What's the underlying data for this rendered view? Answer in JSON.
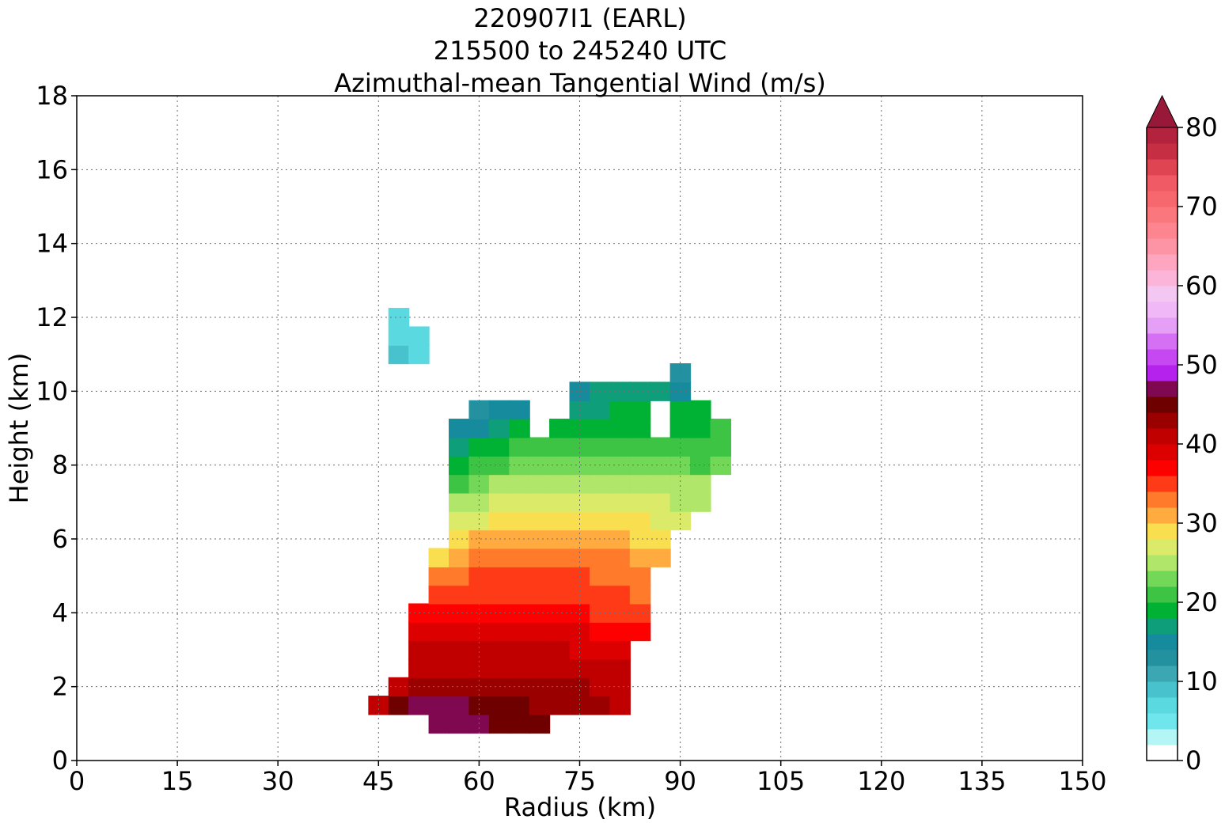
{
  "chart_data": {
    "type": "heatmap",
    "title_lines": [
      "220907I1 (EARL)",
      "215500 to 245240 UTC",
      "Azimuthal-mean Tangential Wind (m/s)"
    ],
    "xlabel": "Radius (km)",
    "ylabel": "Height (km)",
    "xlim": [
      0,
      150
    ],
    "ylim": [
      0,
      18
    ],
    "xticks": [
      "0",
      "15",
      "30",
      "45",
      "60",
      "75",
      "90",
      "105",
      "120",
      "135",
      "150"
    ],
    "yticks": [
      "0",
      "2",
      "4",
      "6",
      "8",
      "10",
      "12",
      "14",
      "16",
      "18"
    ],
    "grid": true,
    "colorbar": {
      "ticks": [
        "0",
        "10",
        "20",
        "30",
        "40",
        "50",
        "60",
        "70",
        "80"
      ],
      "range": [
        0,
        80
      ],
      "extend": "max",
      "levels": [
        0,
        2,
        4,
        6,
        8,
        10,
        12,
        14,
        16,
        18,
        20,
        22,
        24,
        26,
        28,
        30,
        32,
        34,
        36,
        38,
        40,
        42,
        44,
        46,
        48,
        50,
        52,
        54,
        56,
        58,
        60,
        62,
        64,
        66,
        68,
        70,
        72,
        74,
        76,
        78,
        80
      ],
      "colors": [
        "#ffffff",
        "#b4f5f5",
        "#6ee6ec",
        "#5ad9e1",
        "#48c2cc",
        "#3aa7b3",
        "#2391a0",
        "#158b9d",
        "#0f9e7a",
        "#00b233",
        "#3dc444",
        "#73d757",
        "#b0e669",
        "#dcea6a",
        "#f9df50",
        "#ffab40",
        "#ff7a2a",
        "#ff3a16",
        "#ff0000",
        "#dd0000",
        "#c00000",
        "#9b0000",
        "#6e0000",
        "#800850",
        "#b522ee",
        "#c648f1",
        "#d56ff4",
        "#e59ff6",
        "#f0b8f6",
        "#f4c6f2",
        "#fcb4d8",
        "#fea6c0",
        "#fd94a6",
        "#fc8590",
        "#fa787d",
        "#f7686e",
        "#ef5a64",
        "#de4452",
        "#c52e43",
        "#b3233d",
        "#98183a"
      ],
      "over_color": "#98183a"
    },
    "wind_field": {
      "units": "m/s",
      "radius_km": [
        45,
        48,
        51,
        54,
        57,
        60,
        63,
        66,
        69,
        72,
        75,
        78,
        81,
        84,
        87,
        90,
        93,
        96
      ],
      "height_km": [
        1.0,
        1.5,
        2.0,
        2.5,
        3.0,
        3.5,
        4.0,
        4.5,
        5.0,
        5.5,
        6.0,
        6.5,
        7.0,
        7.5,
        8.0,
        8.5,
        9.0,
        9.5,
        10.0,
        10.5,
        11.0,
        11.5,
        12.0
      ],
      "rows": [
        [
          null,
          null,
          null,
          47,
          47,
          47,
          45,
          45,
          45,
          null,
          null,
          null,
          null,
          null,
          null,
          null,
          null,
          null
        ],
        [
          41,
          44,
          46,
          46,
          46,
          44,
          44,
          44,
          43,
          43,
          42,
          42,
          41,
          null,
          null,
          null,
          null,
          null
        ],
        [
          null,
          40,
          42,
          43,
          43,
          43,
          43,
          43,
          42,
          42,
          42,
          41,
          40,
          null,
          null,
          null,
          null,
          null
        ],
        [
          null,
          null,
          40,
          40,
          41,
          41,
          41,
          41,
          41,
          41,
          40,
          40,
          40,
          null,
          null,
          null,
          null,
          null
        ],
        [
          null,
          null,
          40,
          40,
          40,
          40,
          40,
          40,
          40,
          40,
          39,
          39,
          39,
          null,
          null,
          null,
          null,
          null
        ],
        [
          null,
          null,
          39,
          39,
          39,
          39,
          39,
          39,
          39,
          38,
          38,
          37,
          37,
          36,
          null,
          null,
          null,
          null
        ],
        [
          null,
          null,
          36,
          36,
          37,
          37,
          37,
          37,
          37,
          37,
          36,
          35,
          35,
          34,
          null,
          null,
          null,
          null
        ],
        [
          null,
          null,
          null,
          35,
          35,
          35,
          35,
          35,
          35,
          35,
          35,
          34,
          34,
          33,
          null,
          null,
          null,
          null
        ],
        [
          null,
          null,
          null,
          33,
          33,
          34,
          34,
          34,
          34,
          34,
          34,
          33,
          33,
          32,
          null,
          null,
          null,
          null
        ],
        [
          null,
          null,
          null,
          29,
          31,
          32,
          32,
          33,
          33,
          33,
          33,
          32,
          32,
          31,
          30,
          null,
          null,
          null
        ],
        [
          null,
          null,
          null,
          null,
          29,
          30,
          31,
          31,
          31,
          31,
          31,
          31,
          30,
          29,
          28,
          null,
          null,
          null
        ],
        [
          null,
          null,
          null,
          null,
          26,
          27,
          28,
          29,
          29,
          29,
          29,
          29,
          28,
          28,
          27,
          26,
          null,
          null
        ],
        [
          null,
          null,
          null,
          null,
          24,
          25,
          26,
          26,
          27,
          27,
          27,
          27,
          27,
          26,
          26,
          25,
          25,
          null
        ],
        [
          null,
          null,
          null,
          null,
          21,
          23,
          24,
          24,
          25,
          25,
          25,
          25,
          25,
          25,
          24,
          24,
          24,
          null
        ],
        [
          null,
          null,
          null,
          null,
          18,
          20,
          21,
          22,
          23,
          23,
          23,
          23,
          23,
          22,
          22,
          22,
          21,
          22
        ],
        [
          null,
          null,
          null,
          null,
          16,
          18,
          19,
          20,
          20,
          21,
          21,
          21,
          21,
          21,
          20,
          20,
          20,
          21
        ],
        [
          null,
          null,
          null,
          null,
          14,
          15,
          16,
          18,
          null,
          19,
          19,
          19,
          19,
          19,
          null,
          19,
          19,
          20
        ],
        [
          null,
          null,
          null,
          null,
          null,
          13,
          14,
          15,
          null,
          null,
          16,
          17,
          18,
          18,
          null,
          18,
          18,
          null
        ],
        [
          null,
          null,
          null,
          null,
          null,
          null,
          null,
          null,
          null,
          null,
          15,
          16,
          16,
          16,
          16,
          15,
          null,
          null
        ],
        [
          null,
          null,
          null,
          null,
          null,
          null,
          null,
          null,
          null,
          null,
          null,
          null,
          null,
          null,
          null,
          13,
          null,
          null
        ],
        [
          null,
          8,
          7,
          null,
          null,
          null,
          null,
          null,
          null,
          null,
          null,
          null,
          null,
          null,
          null,
          null,
          null,
          null
        ],
        [
          null,
          7,
          6,
          null,
          null,
          null,
          null,
          null,
          null,
          null,
          null,
          null,
          null,
          null,
          null,
          null,
          null,
          null
        ],
        [
          null,
          6,
          null,
          null,
          null,
          null,
          null,
          null,
          null,
          null,
          null,
          null,
          null,
          null,
          null,
          null,
          null,
          null
        ]
      ]
    }
  }
}
